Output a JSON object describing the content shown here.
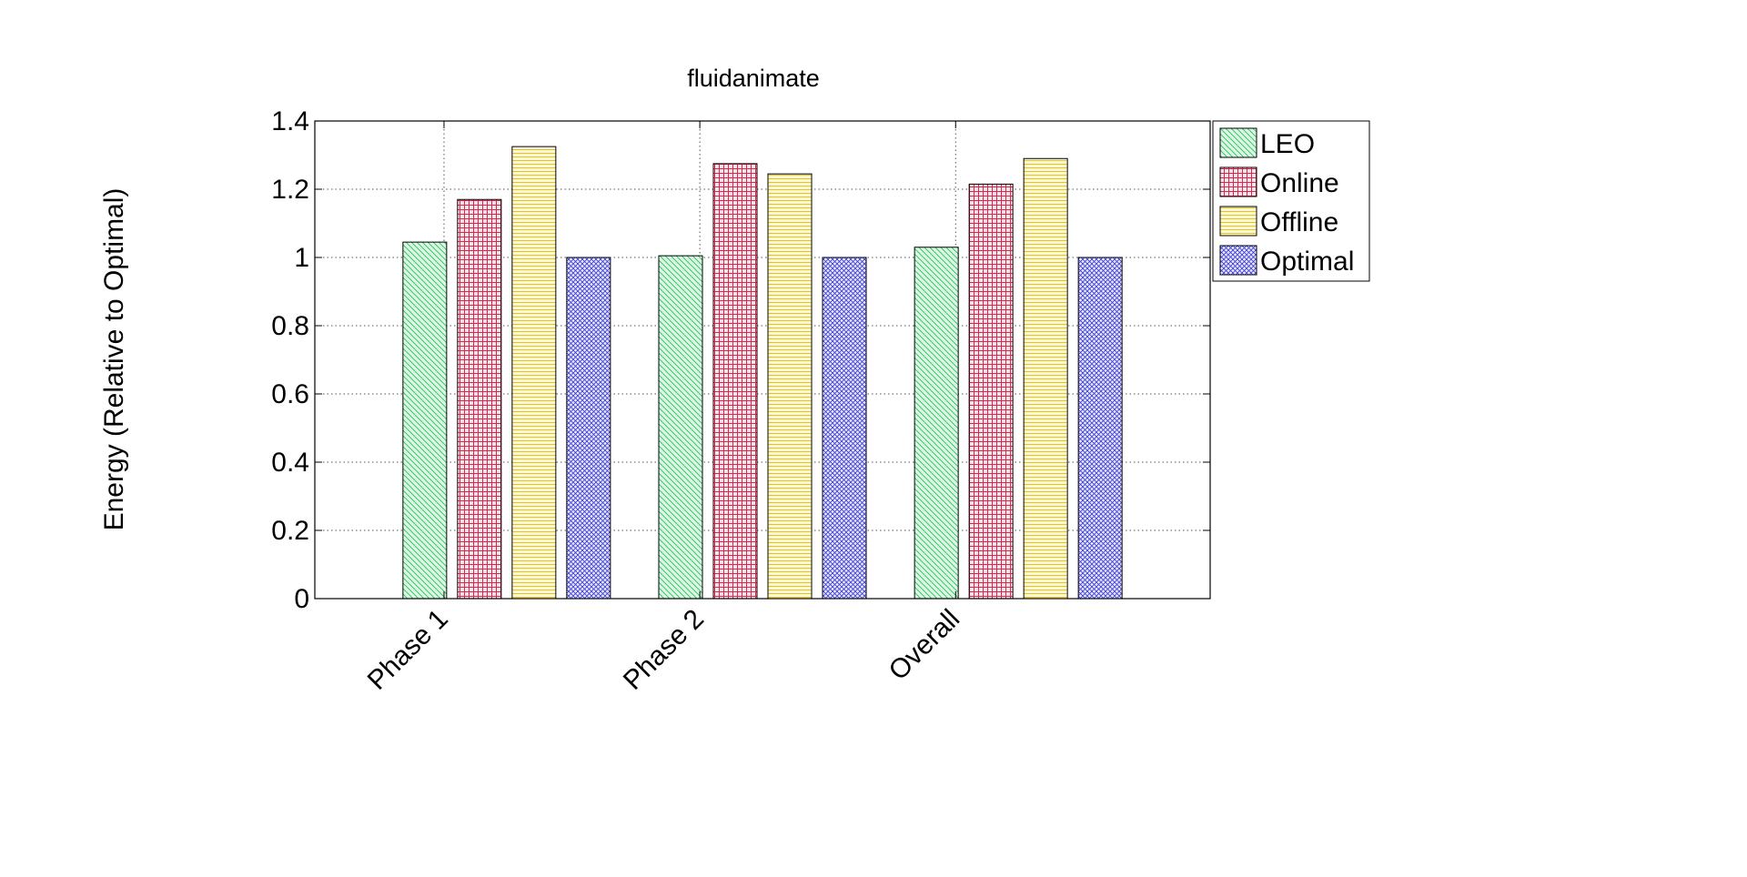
{
  "chart_data": {
    "type": "bar",
    "title": "fluidanimate",
    "xlabel": "",
    "ylabel": "Energy (Relative to Optimal)",
    "categories": [
      "Phase 1",
      "Phase 2",
      "Overall"
    ],
    "ylim": [
      0,
      1.4
    ],
    "yticks": [
      "0",
      "0.2",
      "0.4",
      "0.6",
      "0.8",
      "1",
      "1.2",
      "1.4"
    ],
    "grid": true,
    "legend_position": "top-right",
    "series": [
      {
        "name": "LEO",
        "values": [
          1.045,
          1.005,
          1.03
        ],
        "color": "#22c35e",
        "fill": "#dff5e4",
        "pattern": "diagonal-hatch"
      },
      {
        "name": "Online",
        "values": [
          1.17,
          1.275,
          1.215
        ],
        "color": "#d8264c",
        "fill": "#fbe4ea",
        "pattern": "grid"
      },
      {
        "name": "Offline",
        "values": [
          1.325,
          1.245,
          1.29
        ],
        "color": "#e8c31a",
        "fill": "#fdf7da",
        "pattern": "horizontal-lines"
      },
      {
        "name": "Optimal",
        "values": [
          1.0,
          1.0,
          1.0
        ],
        "color": "#3a3ad8",
        "fill": "#e6e6fa",
        "pattern": "crosshatch"
      }
    ]
  }
}
